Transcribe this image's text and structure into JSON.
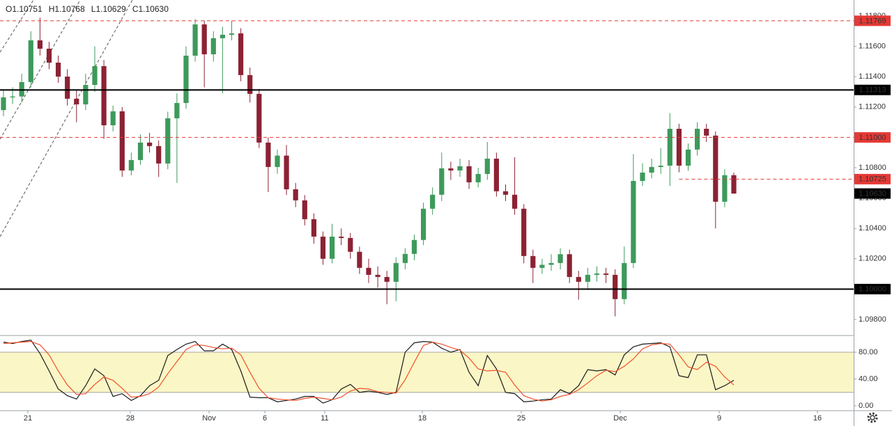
{
  "chart_data": [
    {
      "type": "candlestick",
      "header": [
        "O1.10751",
        "H1.10768",
        "L1.10629",
        "C1.10630"
      ],
      "up_color": "#3d9a5b",
      "down_color": "#8c2234",
      "xlim": [
        -0.38,
        93.13
      ],
      "xticks": [
        {
          "value": 2.67,
          "label": "21"
        },
        {
          "value": 13.89,
          "label": "28"
        },
        {
          "value": 22.52,
          "label": "Nov"
        },
        {
          "value": 28.63,
          "label": "6"
        },
        {
          "value": 35.19,
          "label": "11"
        },
        {
          "value": 45.88,
          "label": "18"
        },
        {
          "value": 56.72,
          "label": "25"
        },
        {
          "value": 67.56,
          "label": "Dec"
        },
        {
          "value": 78.4,
          "label": "9"
        },
        {
          "value": 89.16,
          "label": "16"
        }
      ],
      "ylim": [
        1.09694,
        1.11906
      ],
      "yticks": [
        {
          "value": 1.098,
          "label": "1.09800"
        },
        {
          "value": 1.1,
          "label": "1.10000"
        },
        {
          "value": 1.102,
          "label": "1.10200"
        },
        {
          "value": 1.104,
          "label": "1.10400"
        },
        {
          "value": 1.106,
          "label": "1.10600"
        },
        {
          "value": 1.108,
          "label": "1.10800"
        },
        {
          "value": 1.11,
          "label": "1.11000"
        },
        {
          "value": 1.112,
          "label": "1.11200"
        },
        {
          "value": 1.114,
          "label": "1.11400"
        },
        {
          "value": 1.116,
          "label": "1.11600"
        },
        {
          "value": 1.118,
          "label": "1.11800"
        }
      ],
      "grid": false,
      "levels": [
        {
          "value": 1.11769,
          "label": "1.11769",
          "color": "#e53935",
          "style": "dashed"
        },
        {
          "value": 1.11313,
          "label": "1.11313",
          "color": "#000000",
          "style": "solid"
        },
        {
          "value": 1.11,
          "label": "1.11000",
          "color": "#e53935",
          "style": "dashed"
        },
        {
          "value": 1.10725,
          "label": "1.10725",
          "color": "#e53935",
          "style": "dashed",
          "from": 74
        },
        {
          "value": 1.1063,
          "label": "1.10630",
          "color": "#000000",
          "style": "label"
        },
        {
          "value": 1.1,
          "label": "1.10000",
          "color": "#000000",
          "style": "solid"
        }
      ],
      "open": [
        1.1118,
        1.11264,
        1.1127,
        1.11365,
        1.1164,
        1.11585,
        1.11493,
        1.11401,
        1.11255,
        1.11218,
        1.11346,
        1.1147,
        1.1108,
        1.11172,
        1.10782,
        1.10851,
        1.10966,
        1.10943,
        1.10828,
        1.11126,
        1.11227,
        1.11539,
        1.11745,
        1.11548,
        1.11654,
        1.11677,
        1.11686,
        1.11411,
        1.11287,
        1.10966,
        1.10805,
        1.1088,
        1.10658,
        1.10585,
        1.10461,
        1.10346,
        1.102,
        1.10346,
        1.10337,
        1.10246,
        1.1014,
        1.10094,
        1.1008,
        1.10048,
        1.10172,
        1.10232,
        1.10324,
        1.1053,
        1.10622,
        1.10796,
        1.10782,
        1.1081,
        1.10704,
        1.10759,
        1.1086,
        1.10645,
        1.10622,
        1.1053,
        1.10218,
        1.1014,
        1.1016,
        1.10172,
        1.1023,
        1.1008,
        1.10048,
        1.10094,
        1.10103,
        1.10094,
        1.09934,
        1.10172,
        1.10713,
        1.10768,
        1.10805,
        1.10814,
        1.11057,
        1.10814,
        1.1092,
        1.11057,
        1.11012,
        1.10576,
        1.10751
      ],
      "high": [
        1.1131,
        1.1133,
        1.1142,
        1.117,
        1.1179,
        1.1163,
        1.1154,
        1.1145,
        1.1131,
        1.1142,
        1.116,
        1.1151,
        1.1121,
        1.112,
        1.109,
        1.1102,
        1.1103,
        1.1098,
        1.1117,
        1.1129,
        1.116,
        1.1178,
        1.1177,
        1.117,
        1.1173,
        1.1177,
        1.1172,
        1.1146,
        1.1132,
        1.11,
        1.1092,
        1.1095,
        1.107,
        1.1062,
        1.105,
        1.1038,
        1.1043,
        1.104,
        1.1037,
        1.1028,
        1.102,
        1.1015,
        1.1012,
        1.1021,
        1.1027,
        1.1036,
        1.1057,
        1.1067,
        1.109,
        1.1084,
        1.1086,
        1.1085,
        1.108,
        1.1097,
        1.109,
        1.1069,
        1.1087,
        1.1056,
        1.1026,
        1.102,
        1.1023,
        1.1027,
        1.1026,
        1.1012,
        1.1014,
        1.1015,
        1.1014,
        1.1013,
        1.1028,
        1.1089,
        1.1083,
        1.1086,
        1.1093,
        1.1116,
        1.1109,
        1.1096,
        1.111,
        1.1109,
        1.1104,
        1.1079,
        1.10768
      ],
      "low": [
        1.1114,
        1.1122,
        1.1123,
        1.1133,
        1.1154,
        1.1145,
        1.1136,
        1.1121,
        1.111,
        1.1118,
        1.113,
        1.1099,
        1.1104,
        1.1074,
        1.1075,
        1.1082,
        1.109,
        1.1074,
        1.1079,
        1.107,
        1.1119,
        1.115,
        1.1133,
        1.115,
        1.1129,
        1.1164,
        1.1137,
        1.1123,
        1.1093,
        1.1064,
        1.1076,
        1.1062,
        1.1054,
        1.1042,
        1.103,
        1.1016,
        1.1017,
        1.1029,
        1.102,
        1.101,
        1.1004,
        1.1001,
        1.099,
        1.0992,
        1.1013,
        1.1019,
        1.1029,
        1.1049,
        1.1058,
        1.1072,
        1.1074,
        1.1066,
        1.1067,
        1.1072,
        1.1061,
        1.1058,
        1.1049,
        1.1017,
        1.1004,
        1.101,
        1.1012,
        1.1013,
        1.1004,
        1.0993,
        1.1,
        1.1005,
        1.1004,
        1.0982,
        1.099,
        1.1014,
        1.1068,
        1.1073,
        1.1076,
        1.1068,
        1.1077,
        1.1078,
        1.1088,
        1.1097,
        1.104,
        1.1054,
        1.10629
      ],
      "close": [
        1.11264,
        1.1127,
        1.11365,
        1.1164,
        1.11585,
        1.11493,
        1.11401,
        1.11255,
        1.11218,
        1.11346,
        1.1147,
        1.1108,
        1.11172,
        1.10782,
        1.10851,
        1.10966,
        1.10943,
        1.10828,
        1.11126,
        1.11227,
        1.11539,
        1.11745,
        1.11548,
        1.11654,
        1.11677,
        1.11686,
        1.11411,
        1.11287,
        1.10966,
        1.10805,
        1.1088,
        1.10658,
        1.10585,
        1.10461,
        1.10346,
        1.102,
        1.10346,
        1.10337,
        1.10246,
        1.1014,
        1.10094,
        1.1008,
        1.10048,
        1.10172,
        1.10232,
        1.10324,
        1.1053,
        1.10622,
        1.10796,
        1.10782,
        1.1081,
        1.10704,
        1.10759,
        1.1086,
        1.10645,
        1.10622,
        1.1053,
        1.10218,
        1.1014,
        1.1016,
        1.10172,
        1.1023,
        1.1008,
        1.10048,
        1.10094,
        1.10103,
        1.10094,
        1.09934,
        1.10172,
        1.10713,
        1.10768,
        1.10805,
        1.10814,
        1.11057,
        1.10814,
        1.1092,
        1.11057,
        1.11012,
        1.10576,
        1.10751,
        1.1063
      ]
    },
    {
      "type": "line",
      "xlim": [
        -0.38,
        93.13
      ],
      "ylim": [
        -7.3,
        104.9
      ],
      "yticks": [
        {
          "value": 0,
          "label": "0.00"
        },
        {
          "value": 40,
          "label": "40.00"
        },
        {
          "value": 80,
          "label": "80.00"
        }
      ],
      "band": [
        20,
        80
      ],
      "band_color": "#fbf6c6",
      "series": [
        {
          "color": "#1a1a1a",
          "values": [
            95,
            93,
            96,
            98,
            78,
            52,
            25,
            15,
            10,
            30,
            55,
            45,
            14,
            18,
            8,
            15,
            30,
            38,
            75,
            84,
            92,
            96,
            82,
            82,
            92,
            84,
            52,
            13,
            12,
            12,
            6,
            8,
            10,
            14,
            14,
            4,
            9,
            25,
            32,
            20,
            22,
            20,
            17,
            20,
            80,
            94,
            96,
            95,
            86,
            80,
            84,
            50,
            30,
            75,
            55,
            20,
            18,
            6,
            7,
            9,
            10,
            24,
            18,
            30,
            54,
            52,
            54,
            46,
            76,
            88,
            92,
            93,
            94,
            88,
            45,
            42,
            76,
            76,
            24,
            30,
            38
          ]
        },
        {
          "color": "#f0502a",
          "values": [
            93,
            94,
            95,
            96,
            91,
            76,
            52,
            31,
            17,
            18,
            32,
            43,
            38,
            26,
            13,
            14,
            18,
            28,
            48,
            66,
            84,
            91,
            90,
            87,
            85,
            86,
            76,
            50,
            26,
            12,
            10,
            9,
            8,
            11,
            13,
            11,
            9,
            13,
            22,
            26,
            25,
            21,
            20,
            19,
            39,
            65,
            90,
            95,
            92,
            87,
            83,
            71,
            55,
            52,
            53,
            50,
            31,
            15,
            10,
            7,
            9,
            14,
            17,
            24,
            34,
            45,
            53,
            51,
            59,
            70,
            85,
            91,
            93,
            92,
            76,
            58,
            54,
            65,
            59,
            43,
            31
          ]
        }
      ]
    }
  ]
}
